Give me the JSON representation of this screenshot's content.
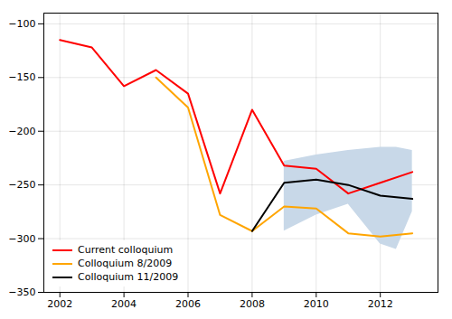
{
  "chart_data": {
    "type": "line",
    "series": [
      {
        "name": "Current colloquium",
        "color": "#FF0000",
        "x": [
          2002,
          2003,
          2004,
          2005,
          2006,
          2007,
          2008,
          2009,
          2010,
          2011,
          2012,
          2013
        ],
        "values": [
          -115,
          -122,
          -158,
          -143,
          -165,
          -258,
          -180,
          -232,
          -235,
          -258,
          -248,
          -238
        ]
      },
      {
        "name": "Colloquium 8/2009",
        "color": "#FFA500",
        "x": [
          2005,
          2006,
          2007,
          2008,
          2009,
          2010,
          2011,
          2012,
          2013
        ],
        "values": [
          -150,
          -178,
          -278,
          -293,
          -270,
          -272,
          -295,
          -298,
          -295
        ]
      },
      {
        "name": "Colloquium 11/2009",
        "color": "#000000",
        "x": [
          2008,
          2009,
          2010,
          2011,
          2012,
          2013
        ],
        "values": [
          -293,
          -248,
          -245,
          -250,
          -260,
          -263
        ]
      }
    ],
    "band": {
      "x": [
        2009,
        2010,
        2011,
        2012,
        2012.5,
        2013
      ],
      "upper": [
        -228,
        -222,
        -218,
        -215,
        -215,
        -218
      ],
      "lower": [
        -293,
        -278,
        -268,
        -305,
        -310,
        -275
      ],
      "color": "#c8d8e8"
    },
    "xlim": [
      2001.5,
      2013.8
    ],
    "xticks": [
      2002,
      2004,
      2006,
      2008,
      2010,
      2012
    ],
    "ylim": [
      -350,
      -90
    ],
    "yticks": [
      -100,
      -150,
      -200,
      -250,
      -300,
      -350
    ],
    "grid": true,
    "legend": "lower left"
  }
}
